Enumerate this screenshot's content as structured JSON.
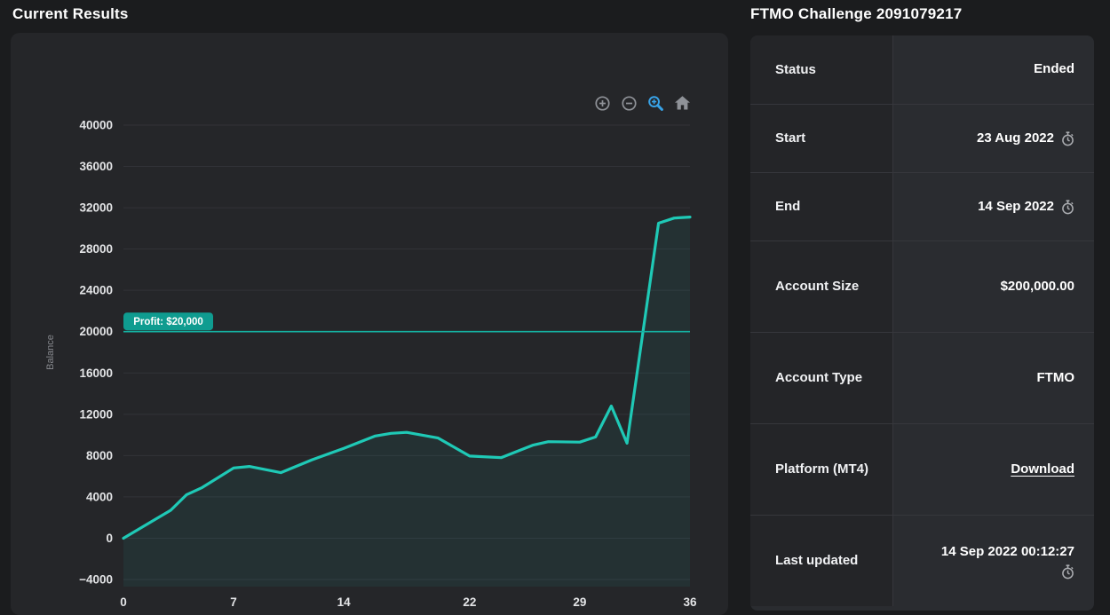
{
  "left_panel": {
    "title": "Current Results",
    "modebar": [
      {
        "name": "zoom-in"
      },
      {
        "name": "zoom-out"
      },
      {
        "name": "box-zoom",
        "active": true
      },
      {
        "name": "reset-home"
      }
    ]
  },
  "chart_data": {
    "type": "line",
    "title": "Current Results",
    "xlabel": "",
    "ylabel": "Balance",
    "xlim": [
      0,
      36
    ],
    "ylim_top": 40000,
    "ylim_bottom": -4000,
    "x_ticks": [
      0,
      7,
      14,
      22,
      29,
      36
    ],
    "y_ticks": [
      40000,
      36000,
      32000,
      28000,
      24000,
      20000,
      16000,
      12000,
      8000,
      4000,
      0,
      -4000
    ],
    "grid": "horizontal",
    "legend": "none",
    "series": [
      {
        "name": "Balance",
        "color": "#1fc9b6",
        "fill_color": "rgba(32,201,182,0.07)",
        "points": [
          [
            0,
            0
          ],
          [
            2,
            1800
          ],
          [
            3,
            2700
          ],
          [
            4,
            4200
          ],
          [
            5,
            4900
          ],
          [
            7,
            6800
          ],
          [
            8,
            6950
          ],
          [
            10,
            6350
          ],
          [
            12,
            7600
          ],
          [
            14,
            8700
          ],
          [
            16,
            9900
          ],
          [
            17,
            10150
          ],
          [
            18,
            10250
          ],
          [
            20,
            9700
          ],
          [
            22,
            7950
          ],
          [
            24,
            7800
          ],
          [
            26,
            9000
          ],
          [
            27,
            9350
          ],
          [
            29,
            9300
          ],
          [
            30,
            9800
          ],
          [
            31,
            12800
          ],
          [
            32,
            9200
          ],
          [
            34,
            30500
          ],
          [
            35,
            31000
          ],
          [
            36,
            31100
          ]
        ]
      }
    ],
    "profit_target": {
      "value": 20000,
      "label": "Profit: $20,000",
      "line_color": "#15b2a2",
      "badge_color": "#0f9c90"
    }
  },
  "right_panel": {
    "title": "FTMO Challenge 2091079217",
    "rows": [
      {
        "label": "Status",
        "value": "Ended"
      },
      {
        "label": "Start",
        "value": "23 Aug 2022",
        "icon": "stopwatch"
      },
      {
        "label": "End",
        "value": "14 Sep 2022",
        "icon": "stopwatch"
      },
      {
        "label": "Account Size",
        "value": "$200,000.00"
      },
      {
        "label": "Account Type",
        "value": "FTMO"
      },
      {
        "label": "Platform (MT4)",
        "value": "Download",
        "link": true
      },
      {
        "label": "Last updated",
        "value": "14 Sep 2022 00:12:27",
        "icon": "stopwatch",
        "icon_below": true
      }
    ]
  },
  "colors": {
    "page_bg": "#1b1c1e",
    "card_bg": "#252629",
    "info_card_bg": "#2a2c30",
    "info_label_bg": "#242528",
    "divider": "#36373c",
    "grid_line": "#323338",
    "accent_teal": "#1fc9b6",
    "modebar_gray": "#8f9298",
    "modebar_active_blue": "#38a3e8",
    "tick_text": "#e3e4e6",
    "muted_text": "#85878c"
  }
}
